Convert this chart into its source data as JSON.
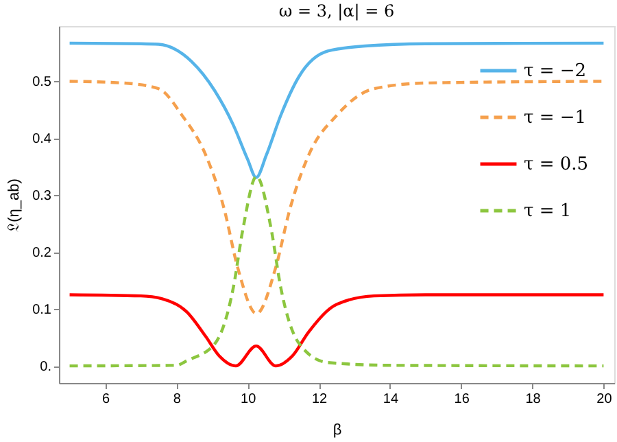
{
  "chart_data": {
    "type": "line",
    "title": "ω = 3, |α| = 6",
    "xlabel": "β",
    "ylabel": "𝔏(η_ab)",
    "xlim": [
      4.7,
      20.3
    ],
    "xticks": [
      6,
      8,
      10,
      12,
      14,
      16,
      18,
      20
    ],
    "ylim": [
      -0.03,
      0.597
    ],
    "yticks": [
      {
        "value": 0,
        "label": "0."
      },
      0.1,
      0.2,
      0.3,
      0.4,
      0.5
    ],
    "grid": false,
    "legend": "top right",
    "marker": "none",
    "series": [
      {
        "name": "τ = −2",
        "color": "#56b4e9",
        "line_style": "solid",
        "x": [
          5,
          7,
          7.5,
          8.42,
          9.08,
          9.6,
          10.0,
          10.24,
          10.53,
          10.93,
          11.45,
          12.25,
          13.3,
          15,
          20
        ],
        "values": [
          0.567,
          0.566,
          0.565,
          0.535,
          0.483,
          0.423,
          0.363,
          0.331,
          0.371,
          0.44,
          0.509,
          0.553,
          0.562,
          0.566,
          0.567
        ]
      },
      {
        "name": "τ = −1",
        "color": "#f5a04d",
        "line_style": "dashed",
        "x": [
          5,
          6.5,
          7.5,
          8.16,
          8.82,
          9.34,
          9.72,
          10.25,
          10.79,
          11.19,
          11.72,
          12.5,
          13.55,
          15,
          20
        ],
        "values": [
          0.5,
          0.497,
          0.487,
          0.44,
          0.371,
          0.276,
          0.173,
          0.092,
          0.173,
          0.276,
          0.371,
          0.44,
          0.487,
          0.497,
          0.5
        ]
      },
      {
        "name": "τ = 0.5",
        "color": "#ff0000",
        "line_style": "solid",
        "x": [
          5,
          7,
          7.6,
          8.29,
          8.82,
          9.21,
          9.67,
          10.24,
          10.79,
          11.25,
          11.72,
          12.5,
          13.55,
          15,
          20
        ],
        "values": [
          0.125,
          0.123,
          0.118,
          0.095,
          0.052,
          0.017,
          0.0,
          0.035,
          0.0,
          0.017,
          0.06,
          0.108,
          0.123,
          0.125,
          0.125
        ]
      },
      {
        "name": "τ = 1",
        "color": "#8cc63f",
        "line_style": "dashed",
        "x": [
          5,
          8,
          8.29,
          9.08,
          9.6,
          9.87,
          10.25,
          10.66,
          10.93,
          11.45,
          12.24,
          14,
          20
        ],
        "values": [
          0.0,
          0.001,
          0.009,
          0.039,
          0.138,
          0.241,
          0.333,
          0.241,
          0.138,
          0.039,
          0.006,
          0.001,
          0.0
        ]
      }
    ]
  }
}
